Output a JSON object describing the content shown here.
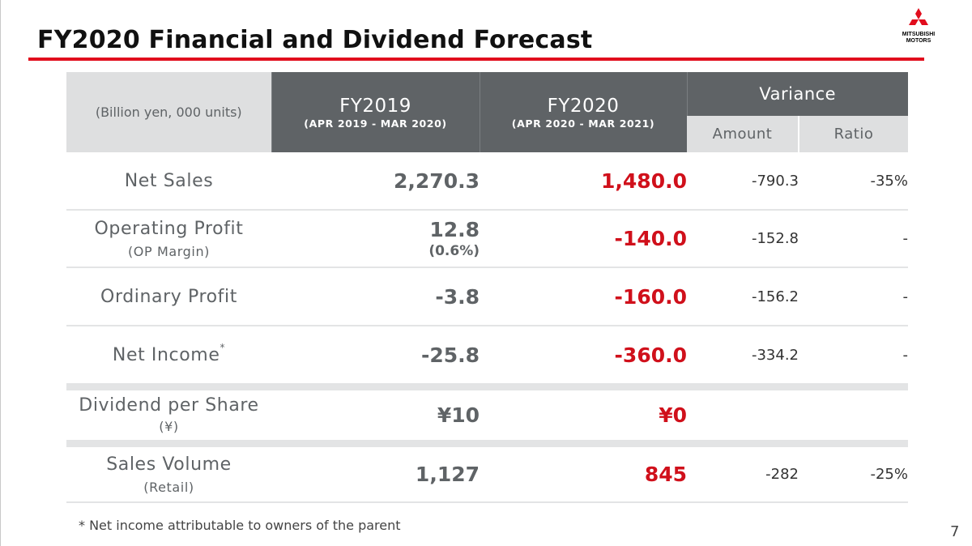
{
  "title": "FY2020 Financial and Dividend Forecast",
  "brand": {
    "name_line1": "MITSUBISHI",
    "name_line2": "MOTORS",
    "accent": "#e10d1d",
    "icon": "three-diamonds-icon"
  },
  "table": {
    "unit_label": "(Billion yen, 000 units)",
    "fy2019": {
      "label": "FY2019",
      "period": "(APR 2019 - MAR 2020)"
    },
    "fy2020": {
      "label": "FY2020",
      "period": "(APR 2020 - MAR 2021)"
    },
    "variance": {
      "label": "Variance",
      "amount": "Amount",
      "ratio": "Ratio"
    },
    "rows": [
      {
        "label": "Net Sales",
        "fy2019": "2,270.3",
        "fy2020": "1,480.0",
        "amount": "-790.3",
        "ratio": "-35%"
      },
      {
        "label": "Operating Profit",
        "sub_label": "(OP Margin)",
        "fy2019": "12.8",
        "fy2019_sub": "(0.6%)",
        "fy2020": "-140.0",
        "amount": "-152.8",
        "ratio": "-"
      },
      {
        "label": "Ordinary Profit",
        "fy2019": "-3.8",
        "fy2020": "-160.0",
        "amount": "-156.2",
        "ratio": "-"
      },
      {
        "label": "Net Income",
        "label_mark": "*",
        "fy2019": "-25.8",
        "fy2020": "-360.0",
        "amount": "-334.2",
        "ratio": "-"
      },
      {
        "label": "Dividend per Share",
        "label_unit": "(¥)",
        "fy2019": "¥10",
        "fy2020": "¥0",
        "amount": "",
        "ratio": ""
      },
      {
        "label": "Sales Volume",
        "sub_label": "(Retail)",
        "fy2019": "1,127",
        "fy2020": "845",
        "amount": "-282",
        "ratio": "-25%"
      }
    ]
  },
  "footnote": "* Net income attributable to owners of the parent",
  "page_number": "7",
  "colors": {
    "header_dark": "#5f6366",
    "header_light": "#dedfe0",
    "forecast_red": "#d0101b"
  }
}
